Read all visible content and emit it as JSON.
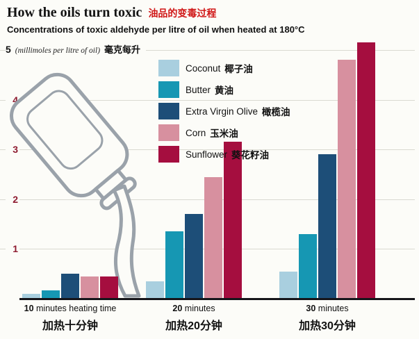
{
  "header": {
    "title_en": "How the oils turn toxic",
    "title_zh": "油品的变毒过程",
    "subtitle": "Concentrations of toxic aldehyde per litre of oil when heated at 180°C"
  },
  "y_axis": {
    "top_tick": "5",
    "unit_en": "(millimoles per litre of oil)",
    "unit_zh": "毫克每升",
    "tick_color": "#8e1b30",
    "ticks": [
      {
        "label": "4",
        "value": 4
      },
      {
        "label": "3",
        "value": 3
      },
      {
        "label": "2",
        "value": 2
      },
      {
        "label": "1",
        "value": 1
      }
    ]
  },
  "chart_data": {
    "type": "bar",
    "title": "How the oils turn toxic 油品的变毒过程",
    "subtitle": "Concentrations of toxic aldehyde per litre of oil when heated at 180°C",
    "xlabel": "heating time",
    "ylabel": "millimoles per litre of oil (毫克每升)",
    "ylim": [
      0,
      5
    ],
    "grid": true,
    "legend_position": "upper-center-overlay",
    "categories": [
      "10 minutes heating time",
      "20 minutes",
      "30 minutes"
    ],
    "categories_zh": [
      "加热十分钟",
      "加热20分钟",
      "加热30分钟"
    ],
    "series": [
      {
        "name": "Coconut",
        "name_zh": "椰子油",
        "color": "#a9cfdf",
        "values": [
          0.1,
          0.35,
          0.55
        ]
      },
      {
        "name": "Butter",
        "name_zh": "黄油",
        "color": "#1697b3",
        "values": [
          0.17,
          1.35,
          1.3
        ]
      },
      {
        "name": "Extra Virgin Olive",
        "name_zh": "橄榄油",
        "color": "#1d4e78",
        "values": [
          0.5,
          1.7,
          2.9
        ]
      },
      {
        "name": "Corn",
        "name_zh": "玉米油",
        "color": "#d7909f",
        "values": [
          0.45,
          2.45,
          4.8
        ]
      },
      {
        "name": "Sunflower",
        "name_zh": "葵花籽油",
        "color": "#a50e3f",
        "values": [
          0.45,
          3.15,
          5.15
        ]
      }
    ]
  },
  "x_labels": [
    {
      "num": "10",
      "rest": " minutes heating time",
      "zh": "加热十分钟"
    },
    {
      "num": "20",
      "rest": " minutes",
      "zh": "加热20分钟"
    },
    {
      "num": "30",
      "rest": " minutes",
      "zh": "加热30分钟"
    }
  ]
}
